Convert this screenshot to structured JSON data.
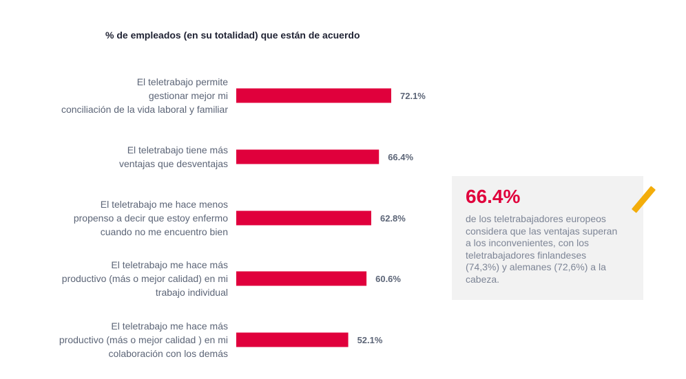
{
  "chart_data": {
    "type": "bar",
    "orientation": "horizontal",
    "title": "% de empleados (en su totalidad) que están de acuerdo",
    "categories": [
      "El teletrabajo permite\ngestionar mejor mi\nconciliación de la vida laboral y familiar",
      "El teletrabajo tiene más\nventajas que desventajas",
      "El teletrabajo me hace menos\npropenso a decir que estoy enfermo\ncuando no me encuentro bien",
      "El teletrabajo me hace más\nproductivo (más o mejor calidad) en mi\ntrabajo individual",
      "El teletrabajo me hace más\nproductivo (más o mejor calidad ) en mi\ncolaboración con los demás"
    ],
    "values": [
      72.1,
      66.4,
      62.8,
      60.6,
      52.1
    ],
    "data_labels": [
      "72.1%",
      "66.4%",
      "62.8%",
      "60.6%",
      "52.1%"
    ],
    "xlim": [
      0,
      100
    ],
    "grid": false,
    "bar_color": "#e0003c"
  },
  "callout": {
    "value": "66.4%",
    "text": "de los teletrabajadores europeos\nconsidera que las ventajas superan\na los inconvenientes, con los\nteletrabajadores finlandeses\n(74,3%) y alemanes (72,6%) a la\ncabeza.",
    "accent_color": "#f3ad0b"
  }
}
